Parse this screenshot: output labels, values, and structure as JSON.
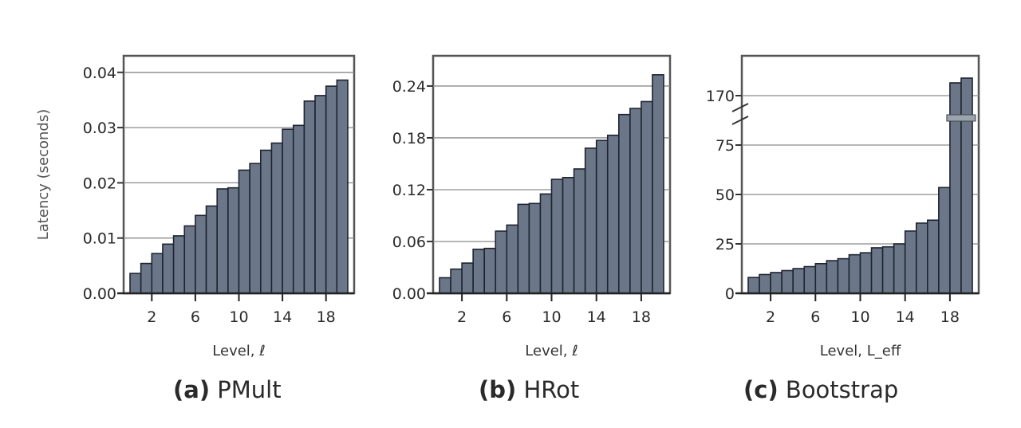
{
  "figure": {
    "ylabel": "Latency (seconds)",
    "captions": [
      {
        "tag": "(a)",
        "title": "PMult"
      },
      {
        "tag": "(b)",
        "title": "HRot"
      },
      {
        "tag": "(c)",
        "title": "Bootstrap"
      }
    ],
    "bar_color": "#6b7789",
    "bar_edge": "#1e2430",
    "grid_color": "#8a8a8a"
  },
  "chart_data": [
    {
      "type": "bar",
      "title": "(a) PMult",
      "xlabel": "Level, ℓ",
      "ylabel": "Latency (seconds)",
      "categories": [
        1,
        2,
        3,
        4,
        5,
        6,
        7,
        8,
        9,
        10,
        11,
        12,
        13,
        14,
        15,
        16,
        17,
        18,
        19,
        20
      ],
      "values": [
        0.0036,
        0.0054,
        0.0072,
        0.0089,
        0.0104,
        0.0122,
        0.0141,
        0.0158,
        0.0189,
        0.0191,
        0.0223,
        0.0235,
        0.0259,
        0.0272,
        0.0297,
        0.0304,
        0.0348,
        0.0358,
        0.0375,
        0.0386
      ],
      "xticks": [
        2,
        6,
        10,
        14,
        18
      ],
      "yticks": [
        0.0,
        0.01,
        0.02,
        0.03,
        0.04
      ],
      "ytick_labels": [
        "0.00",
        "0.01",
        "0.02",
        "0.03",
        "0.04"
      ],
      "ylim": [
        0,
        0.043
      ],
      "grid": true,
      "legend": null
    },
    {
      "type": "bar",
      "title": "(b) HRot",
      "xlabel": "Level, ℓ",
      "ylabel": "Latency (seconds)",
      "categories": [
        1,
        2,
        3,
        4,
        5,
        6,
        7,
        8,
        9,
        10,
        11,
        12,
        13,
        14,
        15,
        16,
        17,
        18,
        19,
        20
      ],
      "values": [
        0.018,
        0.028,
        0.035,
        0.051,
        0.052,
        0.072,
        0.079,
        0.103,
        0.104,
        0.115,
        0.132,
        0.134,
        0.144,
        0.168,
        0.177,
        0.183,
        0.207,
        0.214,
        0.222,
        0.253
      ],
      "xticks": [
        2,
        6,
        10,
        14,
        18
      ],
      "yticks": [
        0.0,
        0.06,
        0.12,
        0.18,
        0.24
      ],
      "ytick_labels": [
        "0.00",
        "0.06",
        "0.12",
        "0.18",
        "0.24"
      ],
      "ylim": [
        0,
        0.275
      ],
      "grid": true,
      "legend": null
    },
    {
      "type": "bar",
      "title": "(c) Bootstrap",
      "xlabel": "Level, L_eff",
      "ylabel": "Latency (seconds)",
      "categories": [
        1,
        2,
        3,
        4,
        5,
        6,
        7,
        8,
        9,
        10,
        11,
        12,
        13,
        14,
        15,
        16,
        17,
        18,
        19,
        20
      ],
      "values": [
        8,
        9.5,
        10.5,
        11.5,
        12.5,
        13.5,
        15,
        16.5,
        17.5,
        19.5,
        20.5,
        23,
        23.5,
        25,
        31.5,
        35.5,
        37,
        53.5,
        178,
        181
      ],
      "xticks": [
        2,
        6,
        10,
        14,
        18
      ],
      "yticks": [
        0,
        25,
        50,
        75,
        170
      ],
      "ytick_labels": [
        "0",
        "25",
        "50",
        "75",
        "170"
      ],
      "broken_axis": {
        "lower_range": [
          0,
          88
        ],
        "upper_range": [
          160,
          185
        ],
        "break_marks": true
      },
      "grid": true,
      "legend": null
    }
  ]
}
